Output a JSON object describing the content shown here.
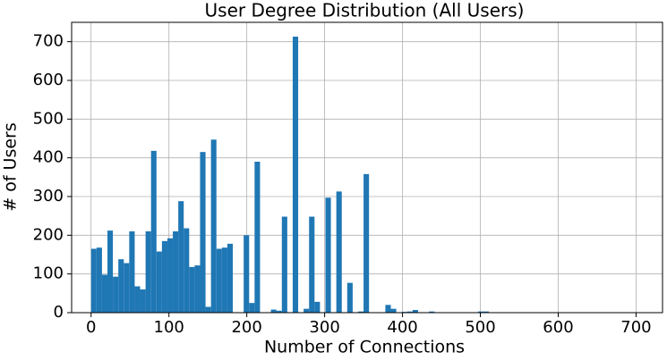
{
  "chart_data": {
    "type": "histogram",
    "title": "User Degree Distribution (All Users)",
    "xlabel": "Number of Connections",
    "ylabel": "# of Users",
    "color": "#1f77b4",
    "grid": true,
    "bins": [
      0,
      7,
      14,
      21,
      28,
      35,
      42,
      49,
      56,
      63,
      70,
      77,
      84,
      91,
      98,
      105,
      112,
      119,
      126,
      133,
      140,
      147,
      154,
      161,
      168,
      175,
      182,
      189,
      196,
      203,
      210,
      217,
      224,
      231,
      238,
      245,
      252,
      259,
      266,
      273,
      280,
      287,
      294,
      301,
      308,
      315,
      322,
      329,
      336,
      343,
      350,
      357,
      364,
      371,
      378,
      385,
      392,
      399,
      406,
      413,
      420,
      427,
      434,
      441,
      448,
      455,
      462,
      469,
      476,
      483,
      490,
      497,
      504,
      511,
      518,
      525,
      532,
      539,
      546,
      553,
      560,
      567,
      574,
      581,
      588,
      595,
      602,
      609,
      616,
      623,
      630,
      637,
      644,
      651,
      658,
      665,
      672,
      679,
      686,
      693,
      700
    ],
    "counts": [
      165,
      168,
      98,
      212,
      93,
      138,
      128,
      210,
      68,
      60,
      210,
      418,
      158,
      185,
      192,
      210,
      288,
      218,
      118,
      122,
      415,
      15,
      447,
      165,
      168,
      178,
      0,
      0,
      200,
      25,
      390,
      0,
      0,
      8,
      5,
      248,
      0,
      713,
      0,
      10,
      248,
      28,
      0,
      297,
      0,
      313,
      0,
      77,
      0,
      3,
      358,
      0,
      0,
      0,
      20,
      10,
      0,
      2,
      3,
      7,
      0,
      0,
      3,
      0,
      0,
      0,
      0,
      0,
      0,
      0,
      0,
      3,
      3,
      0,
      0,
      0,
      0,
      0,
      0,
      0,
      0,
      0,
      0,
      0,
      0,
      0,
      0,
      0,
      0,
      0,
      0,
      0,
      0,
      0,
      0,
      0,
      0,
      0,
      0,
      0
    ],
    "xlim": [
      -25,
      734
    ],
    "ylim": [
      0,
      750
    ],
    "xticks": [
      0,
      100,
      200,
      300,
      400,
      500,
      600,
      700
    ],
    "yticks": [
      0,
      100,
      200,
      300,
      400,
      500,
      600,
      700
    ]
  }
}
